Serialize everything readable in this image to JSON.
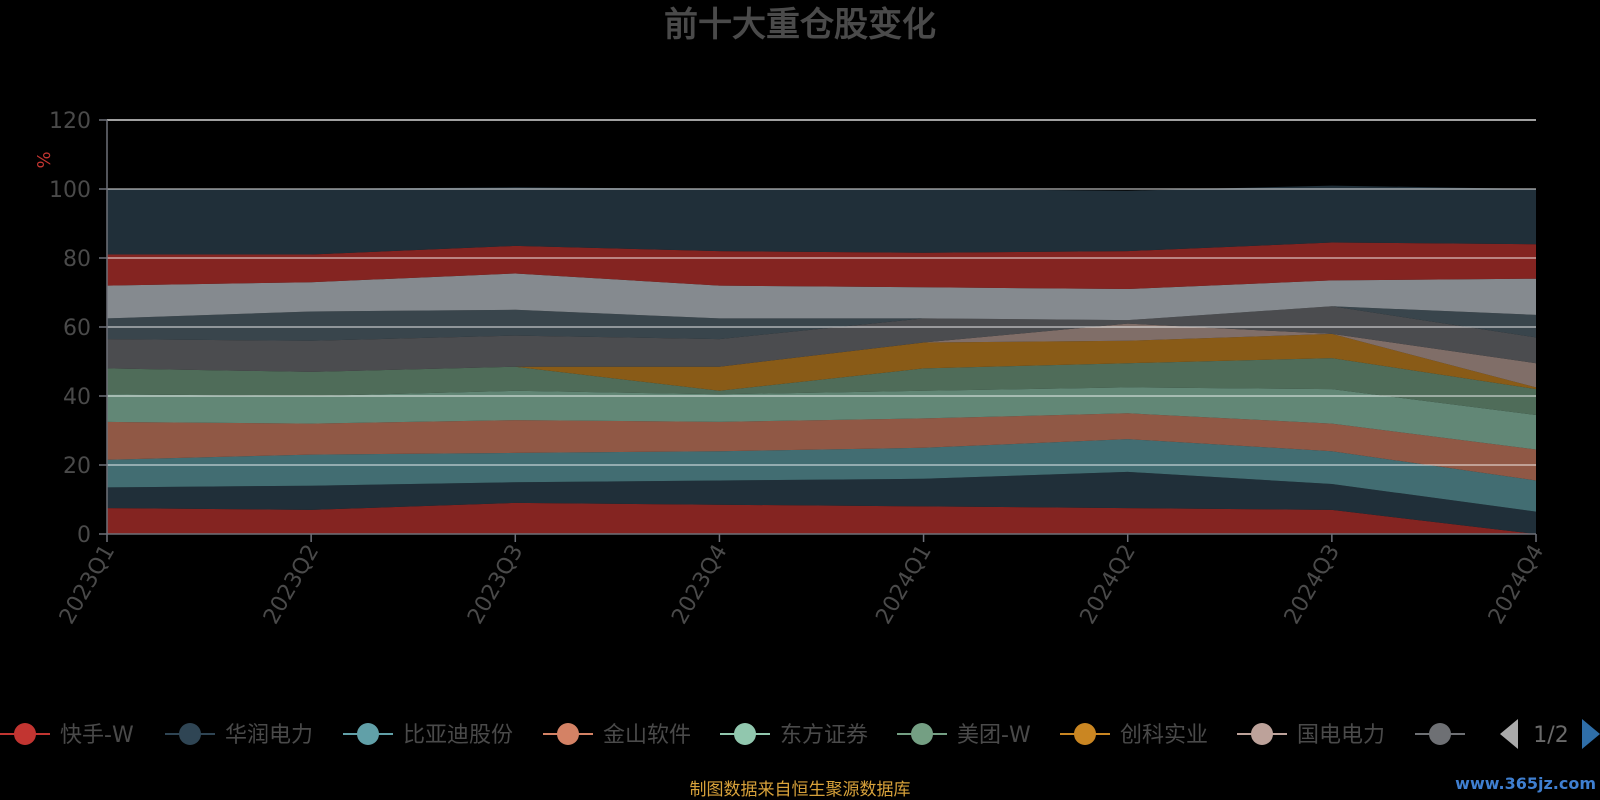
{
  "colors": {
    "background": "#000000",
    "grid": "#ffffff",
    "axis": "#6e7079",
    "text": "#4a4a4a",
    "credit": "#d7a13a",
    "watermark": "#3f7fd0"
  },
  "legend_nav": {
    "page": "1/2",
    "prev_icon": "triangle-left-icon",
    "next_icon": "triangle-right-icon"
  },
  "credit": "制图数据来自恒生聚源数据库",
  "watermark": "www.365jz.com",
  "chart_data": {
    "type": "area",
    "stacked": true,
    "title": "前十大重仓股变化",
    "ylabel": "%",
    "ylim": [
      0,
      120
    ],
    "yticks": [
      0,
      20,
      40,
      60,
      80,
      100,
      120
    ],
    "grid": true,
    "legend_position": "bottom",
    "categories": [
      "2023Q1",
      "2023Q2",
      "2023Q3",
      "2023Q4",
      "2024Q1",
      "2024Q2",
      "2024Q3",
      "2024Q4"
    ],
    "series": [
      {
        "name": "快手-W",
        "color": "#c23531",
        "values": [
          7.5,
          7,
          9,
          8.5,
          8,
          7.5,
          7,
          0
        ]
      },
      {
        "name": "华润电力",
        "color": "#2f4554",
        "values": [
          6,
          7,
          6,
          7,
          8,
          10.5,
          7.5,
          6.5
        ]
      },
      {
        "name": "比亚迪股份",
        "color": "#61a0a8",
        "values": [
          8,
          9,
          8.5,
          8.5,
          9,
          9.5,
          9.5,
          9
        ]
      },
      {
        "name": "金山软件",
        "color": "#d48265",
        "values": [
          11,
          9,
          9.5,
          8.5,
          8.5,
          7.5,
          8,
          9
        ]
      },
      {
        "name": "东方证券",
        "color": "#91c7ae",
        "values": [
          8,
          8,
          8.5,
          8,
          8,
          7.5,
          10,
          10
        ]
      },
      {
        "name": "美团-W",
        "color": "#749f83",
        "values": [
          7.5,
          7,
          7,
          1,
          6.5,
          7,
          9,
          7.5
        ]
      },
      {
        "name": "创科实业",
        "color": "#ca8622",
        "values": [
          0,
          0,
          0,
          7,
          7.5,
          6.5,
          7,
          0.5
        ]
      },
      {
        "name": "国电电力",
        "color": "#bda29a",
        "values": [
          0,
          0,
          0,
          0,
          0,
          5,
          0,
          7
        ]
      },
      {
        "name": "",
        "color": "#6e7074",
        "values": [
          8.5,
          9,
          9,
          8,
          7,
          1,
          8,
          7.5
        ]
      },
      {
        "name": "",
        "color": "#546570",
        "values": [
          6,
          8.5,
          7.5,
          6,
          0,
          0,
          0,
          6.5
        ]
      },
      {
        "name": "",
        "color": "#c4ccd3",
        "values": [
          9.5,
          8.5,
          10.5,
          9.5,
          9,
          9,
          7.5,
          10.5
        ]
      },
      {
        "name": "",
        "color": "#c23531",
        "values": [
          9,
          8,
          8,
          10,
          10,
          11,
          11,
          10
        ]
      },
      {
        "name": "",
        "color": "#2f4554",
        "values": [
          19,
          19,
          17,
          18,
          18.5,
          17.5,
          16.5,
          16
        ]
      }
    ]
  }
}
